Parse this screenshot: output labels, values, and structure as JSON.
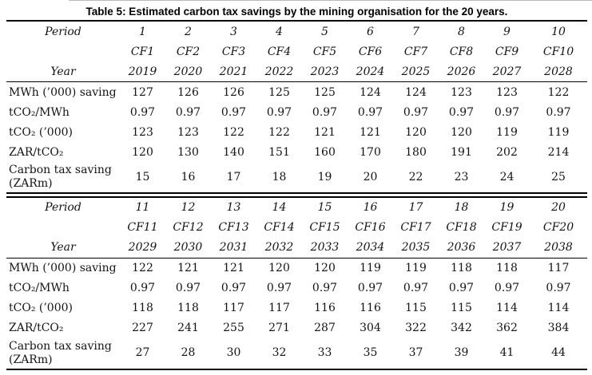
{
  "title": "Table 5: Estimated carbon tax savings by the mining organisation for the 20 years.",
  "tables": [
    {
      "name": "periods-1-10",
      "header_rows": [
        {
          "label": "Period",
          "values": [
            "1",
            "2",
            "3",
            "4",
            "5",
            "6",
            "7",
            "8",
            "9",
            "10"
          ]
        },
        {
          "label": "",
          "values": [
            "CF1",
            "CF2",
            "CF3",
            "CF4",
            "CF5",
            "CF6",
            "CF7",
            "CF8",
            "CF9",
            "CF10"
          ]
        },
        {
          "label": "Year",
          "values": [
            "2019",
            "2020",
            "2021",
            "2022",
            "2023",
            "2024",
            "2025",
            "2026",
            "2027",
            "2028"
          ]
        }
      ],
      "data_rows": [
        {
          "label": "MWh (’000) saving",
          "values": [
            "127",
            "126",
            "126",
            "125",
            "125",
            "124",
            "124",
            "123",
            "123",
            "122"
          ]
        },
        {
          "label": "tCO₂/MWh",
          "values": [
            "0.97",
            "0.97",
            "0.97",
            "0.97",
            "0.97",
            "0.97",
            "0.97",
            "0.97",
            "0.97",
            "0.97"
          ]
        },
        {
          "label": "tCO₂ (’000)",
          "values": [
            "123",
            "123",
            "122",
            "122",
            "121",
            "121",
            "120",
            "120",
            "119",
            "119"
          ]
        },
        {
          "label": "ZAR/tCO₂",
          "values": [
            "120",
            "130",
            "140",
            "151",
            "160",
            "170",
            "180",
            "191",
            "202",
            "214"
          ]
        },
        {
          "label": "Carbon tax saving (ZARm)",
          "values": [
            "15",
            "16",
            "17",
            "18",
            "19",
            "20",
            "22",
            "23",
            "24",
            "25"
          ]
        }
      ]
    },
    {
      "name": "periods-11-20",
      "header_rows": [
        {
          "label": "Period",
          "values": [
            "11",
            "12",
            "13",
            "14",
            "15",
            "16",
            "17",
            "18",
            "19",
            "20"
          ]
        },
        {
          "label": "",
          "values": [
            "CF11",
            "CF12",
            "CF13",
            "CF14",
            "CF15",
            "CF16",
            "CF17",
            "CF18",
            "CF19",
            "CF20"
          ]
        },
        {
          "label": "Year",
          "values": [
            "2029",
            "2030",
            "2031",
            "2032",
            "2033",
            "2034",
            "2035",
            "2036",
            "2037",
            "2038"
          ]
        }
      ],
      "data_rows": [
        {
          "label": "MWh (’000) saving",
          "values": [
            "122",
            "121",
            "121",
            "120",
            "120",
            "119",
            "119",
            "118",
            "118",
            "117"
          ]
        },
        {
          "label": "tCO₂/MWh",
          "values": [
            "0.97",
            "0.97",
            "0.97",
            "0.97",
            "0.97",
            "0.97",
            "0.97",
            "0.97",
            "0.97",
            "0.97"
          ]
        },
        {
          "label": "tCO₂ (’000)",
          "values": [
            "118",
            "118",
            "117",
            "117",
            "116",
            "116",
            "115",
            "115",
            "114",
            "114"
          ]
        },
        {
          "label": "ZAR/tCO₂",
          "values": [
            "227",
            "241",
            "255",
            "271",
            "287",
            "304",
            "322",
            "342",
            "362",
            "384"
          ]
        },
        {
          "label": "Carbon tax saving (ZARm)",
          "values": [
            "27",
            "28",
            "30",
            "32",
            "33",
            "35",
            "37",
            "39",
            "41",
            "44"
          ]
        }
      ]
    }
  ],
  "colors": {
    "text": "#141414",
    "rule": "#000000",
    "background": "#ffffff"
  }
}
